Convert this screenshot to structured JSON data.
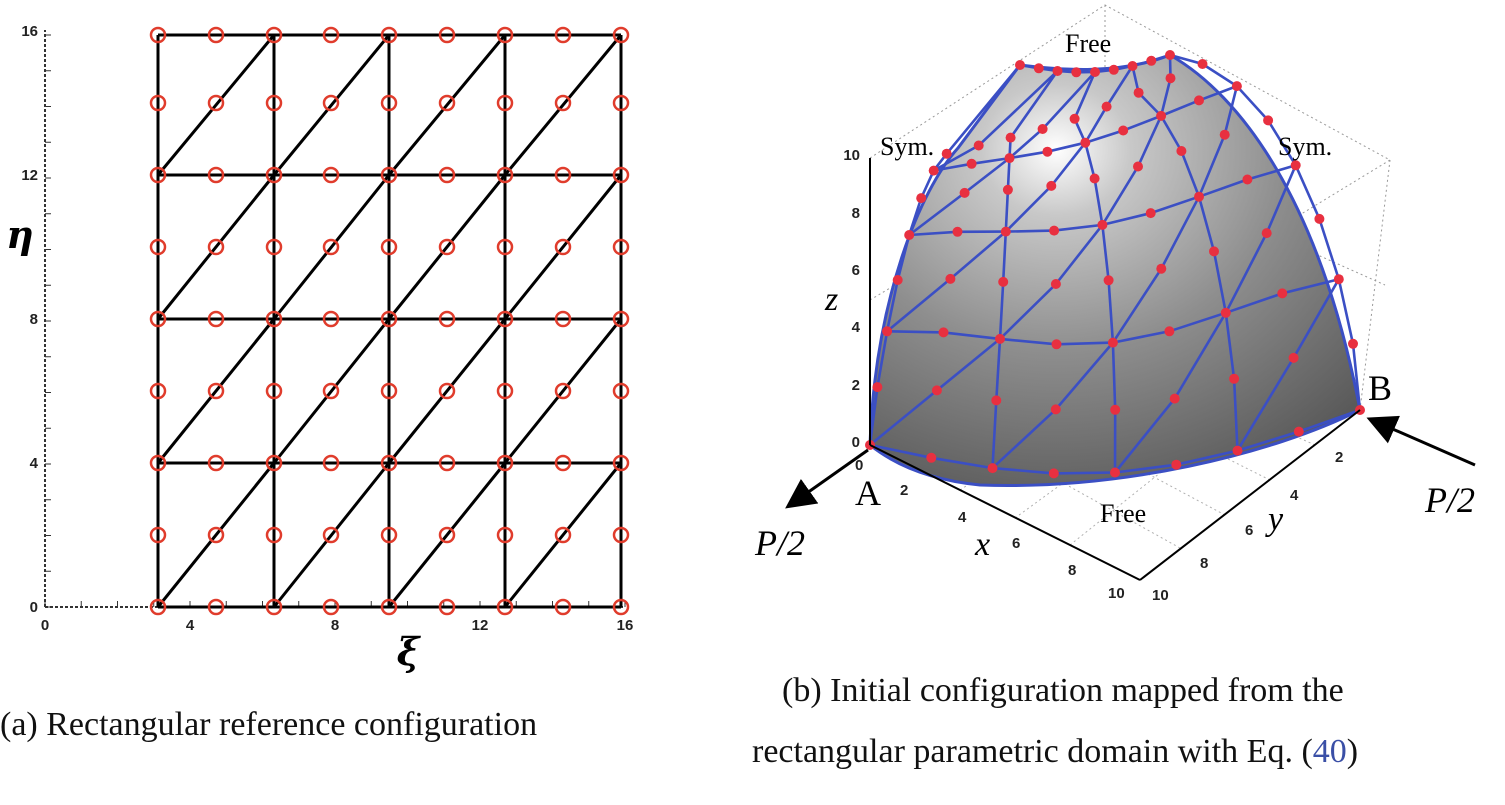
{
  "panel_a": {
    "x_ticks": [
      "0",
      "4",
      "8",
      "12",
      "16"
    ],
    "y_ticks": [
      "0",
      "4",
      "8",
      "12",
      "16"
    ],
    "xlabel": "ξ",
    "ylabel": "η",
    "caption": "(a) Rectangular reference configuration"
  },
  "panel_b": {
    "z_ticks": [
      "0",
      "2",
      "4",
      "6",
      "8",
      "10"
    ],
    "x_ticks": [
      "0",
      "2",
      "4",
      "6",
      "8",
      "10"
    ],
    "y_ticks": [
      "2",
      "4",
      "6",
      "8",
      "10"
    ],
    "axis_x": "x",
    "axis_y": "y",
    "axis_z": "z",
    "label_free_top": "Free",
    "label_free_bottom": "Free",
    "label_sym_left": "Sym.",
    "label_sym_right": "Sym.",
    "point_a": "A",
    "point_b": "B",
    "load_left": "P/2",
    "load_right": "P/2",
    "caption_line1": "(b) Initial configuration mapped from the",
    "caption_line2_text": "rectangular parametric domain with Eq. (",
    "caption_eq": "40",
    "caption_close": ")"
  },
  "colors": {
    "mesh_a": "#000000",
    "node_a": "#e03c2c",
    "mesh_b": "#3b4fc4",
    "node_b": "#e83040",
    "surface": "#8a8a8a",
    "eq_link": "#3a4fa6"
  }
}
